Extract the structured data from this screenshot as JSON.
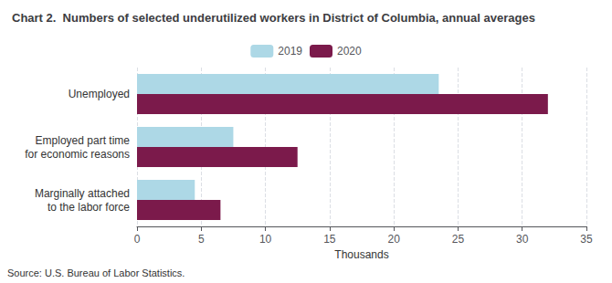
{
  "chart_data": {
    "type": "bar",
    "orientation": "horizontal",
    "title": "Chart 2.  Numbers of selected underutilized workers in District of Columbia, annual averages",
    "categories": [
      "Unemployed",
      "Employed part time\nfor economic reasons",
      "Marginally attached\nto the labor force"
    ],
    "series": [
      {
        "name": "2019",
        "color": "#add8e6",
        "values": [
          23.5,
          7.5,
          4.5
        ]
      },
      {
        "name": "2020",
        "color": "#7b1a4b",
        "values": [
          32.0,
          12.5,
          6.5
        ]
      }
    ],
    "xlabel": "Thousands",
    "xlim": [
      0,
      35
    ],
    "xticks": [
      0,
      5,
      10,
      15,
      20,
      25,
      30,
      35
    ],
    "grid": true,
    "legend": "top",
    "annotations": [
      "Source: U.S. Bureau of Labor Statistics."
    ]
  }
}
